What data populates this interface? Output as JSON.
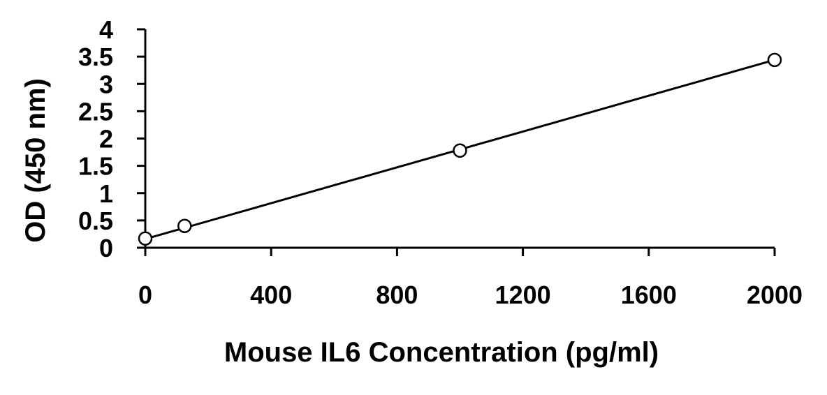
{
  "chart_data": {
    "type": "scatter",
    "title": "",
    "xlabel": "Mouse IL6 Concentration (pg/ml)",
    "ylabel": "OD (450 nm)",
    "xlim": [
      0,
      2000
    ],
    "ylim": [
      0,
      4
    ],
    "x_ticks": [
      0,
      400,
      800,
      1200,
      1600,
      2000
    ],
    "y_ticks": [
      0,
      0.5,
      1,
      1.5,
      2,
      2.5,
      3,
      3.5,
      4
    ],
    "x_tick_labels": [
      "0",
      "400",
      "800",
      "1200",
      "1600",
      "2000"
    ],
    "y_tick_labels": [
      "0",
      "0.5",
      "1",
      "1.5",
      "2",
      "2.5",
      "3",
      "3.5",
      "4"
    ],
    "grid": false,
    "series": [
      {
        "points": [
          {
            "x": 0,
            "y": 0.17
          },
          {
            "x": 125,
            "y": 0.4
          },
          {
            "x": 1000,
            "y": 1.78
          },
          {
            "x": 2000,
            "y": 3.44
          }
        ],
        "marker": "open-circle",
        "color": "#000000"
      }
    ],
    "trendline": {
      "type": "linear",
      "x_range": [
        0,
        2000
      ],
      "y_at_start": 0.16,
      "y_at_end": 3.44,
      "color": "#000000"
    }
  }
}
